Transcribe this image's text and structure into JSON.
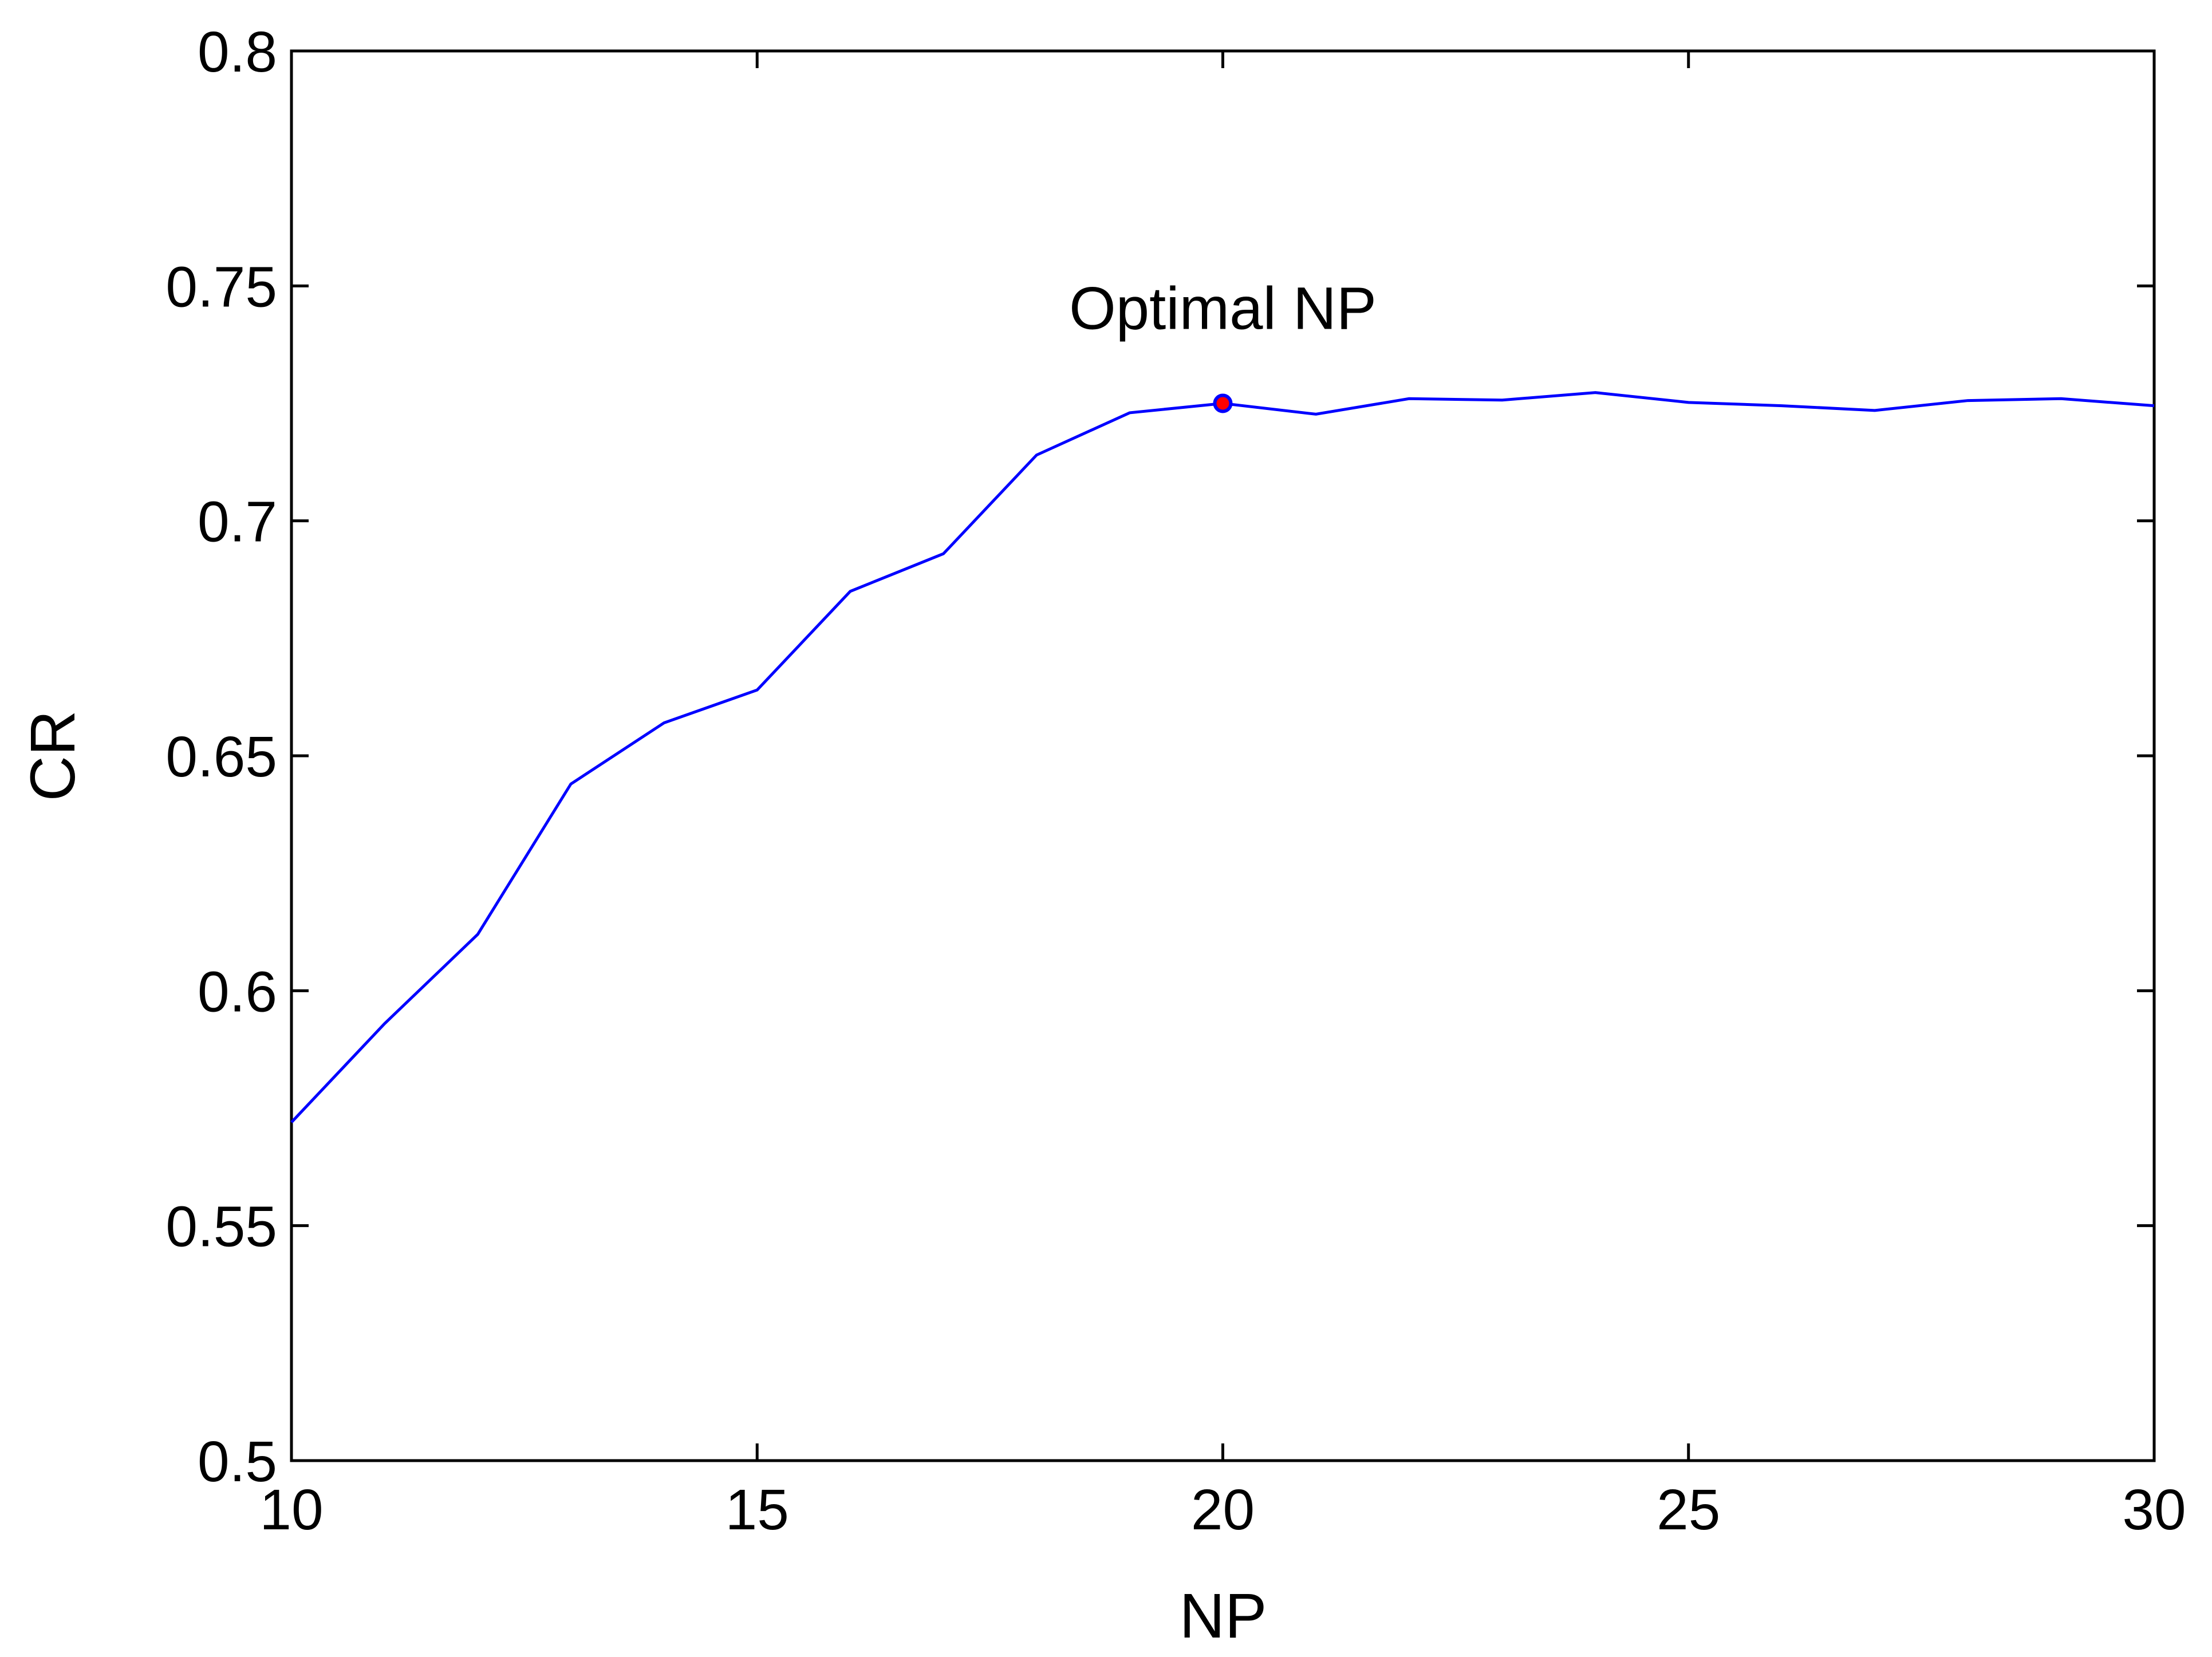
{
  "chart_data": {
    "type": "line",
    "x": [
      10,
      11,
      12,
      13,
      14,
      15,
      16,
      17,
      18,
      19,
      20,
      21,
      22,
      23,
      24,
      25,
      26,
      27,
      28,
      29,
      30
    ],
    "series": [
      {
        "color": "#0000ff",
        "values": [
          0.572,
          0.593,
          0.612,
          0.644,
          0.657,
          0.664,
          0.685,
          0.693,
          0.714,
          0.723,
          0.725,
          0.7227,
          0.726,
          0.7257,
          0.7273,
          0.7252,
          0.7245,
          0.7235,
          0.7256,
          0.726,
          0.7245
        ]
      }
    ],
    "xlim": [
      10,
      30
    ],
    "xticks": [
      10,
      15,
      20,
      25,
      30
    ],
    "ylim": [
      0.5,
      0.8
    ],
    "yticks": [
      0.5,
      0.55,
      0.6,
      0.65,
      0.7,
      0.75,
      0.8
    ],
    "x_label": "NP",
    "y_label": "CR",
    "annotation": {
      "text": "Optimal NP",
      "x": 20,
      "y": 0.725,
      "marker_color": "#ff0000",
      "marker_edge": "#0000ff"
    }
  }
}
